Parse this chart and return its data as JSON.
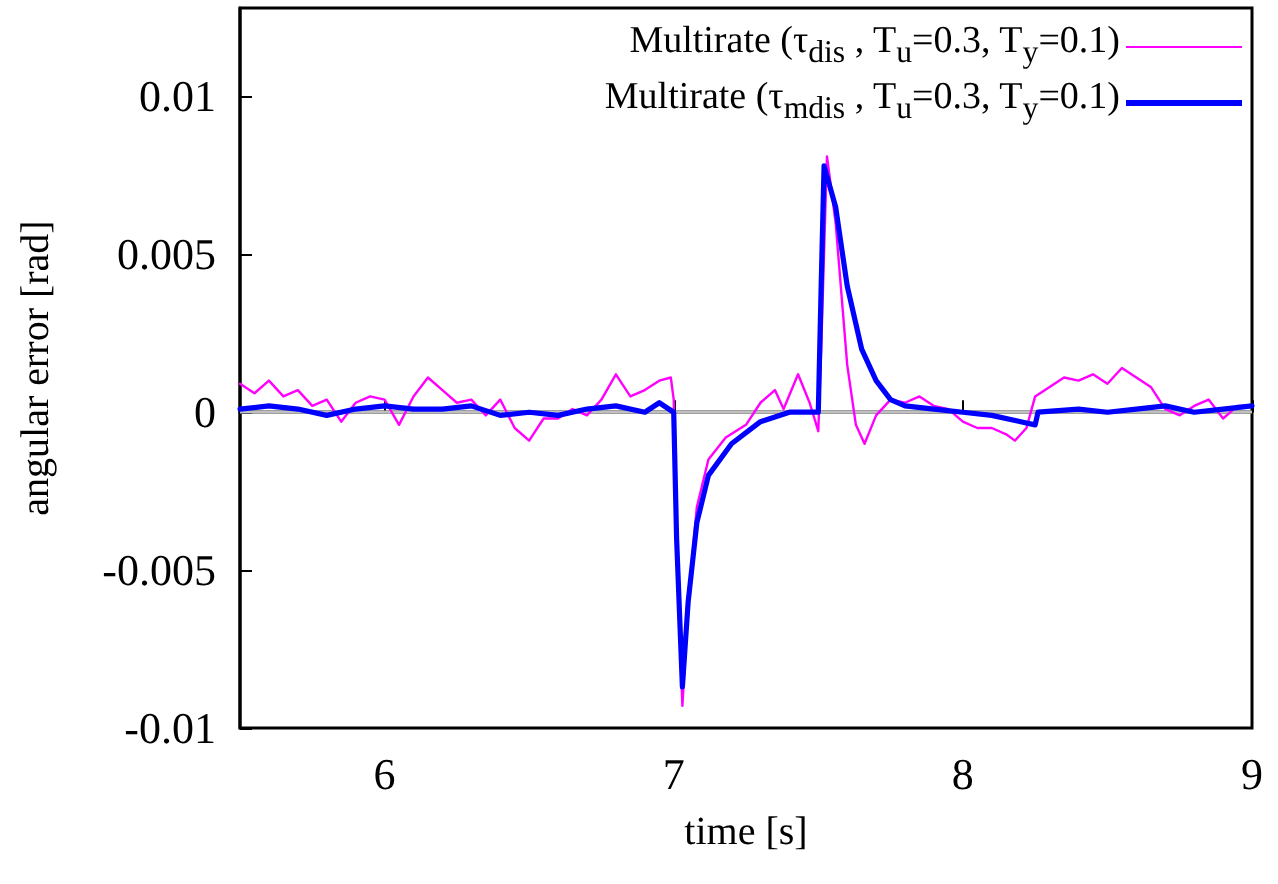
{
  "chart_data": {
    "type": "line",
    "xlabel": "time [s]",
    "ylabel": "angular error [rad]",
    "xlim": [
      5.5,
      9
    ],
    "ylim": [
      -0.01,
      0.0128
    ],
    "xticks": [
      6,
      7,
      8,
      9
    ],
    "yticks": [
      -0.01,
      -0.005,
      0,
      0.005,
      0.01
    ],
    "grid": false,
    "legend": "top right",
    "marker": "none",
    "line_style": "solid",
    "ref_lines": [
      {
        "axis": "y",
        "value": 0,
        "color": "#c0c0c0"
      }
    ],
    "series": [
      {
        "name": "Multirate (τ$_{dis}$ , T$_{u}$=0.3, T$_{y}$=0.1)",
        "color": "#ff00ff",
        "x": [
          5.5,
          5.55,
          5.6,
          5.65,
          5.7,
          5.75,
          5.8,
          5.85,
          5.9,
          5.95,
          6.0,
          6.05,
          6.1,
          6.15,
          6.2,
          6.25,
          6.3,
          6.35,
          6.4,
          6.45,
          6.5,
          6.55,
          6.6,
          6.65,
          6.7,
          6.75,
          6.8,
          6.85,
          6.9,
          6.95,
          6.99,
          7.0,
          7.01,
          7.03,
          7.05,
          7.08,
          7.12,
          7.18,
          7.25,
          7.3,
          7.35,
          7.38,
          7.43,
          7.47,
          7.5,
          7.51,
          7.53,
          7.56,
          7.6,
          7.63,
          7.66,
          7.7,
          7.75,
          7.8,
          7.85,
          7.9,
          7.95,
          8.0,
          8.05,
          8.1,
          8.15,
          8.18,
          8.22,
          8.25,
          8.3,
          8.35,
          8.4,
          8.45,
          8.5,
          8.55,
          8.6,
          8.65,
          8.7,
          8.75,
          8.8,
          8.85,
          8.9,
          8.95,
          9.0
        ],
        "values": [
          0.0009,
          0.0006,
          0.001,
          0.0005,
          0.0007,
          0.0002,
          0.0004,
          -0.0003,
          0.0003,
          0.0005,
          0.0004,
          -0.0004,
          0.0005,
          0.0011,
          0.0007,
          0.0003,
          0.0004,
          -0.0001,
          0.0004,
          -0.0005,
          -0.0009,
          -0.0002,
          -0.0002,
          0.0001,
          -0.0001,
          0.0004,
          0.0012,
          0.0005,
          0.0007,
          0.001,
          0.0011,
          0.0004,
          -0.004,
          -0.0093,
          -0.006,
          -0.003,
          -0.0015,
          -0.0008,
          -0.0004,
          0.0003,
          0.0007,
          0.0001,
          0.0012,
          0.0003,
          -0.0006,
          0.002,
          0.0081,
          0.006,
          0.0015,
          -0.0004,
          -0.001,
          -0.0001,
          0.0004,
          0.0003,
          0.0005,
          0.0002,
          0.0001,
          -0.0003,
          -0.0005,
          -0.0005,
          -0.0007,
          -0.0009,
          -0.0005,
          0.0005,
          0.0008,
          0.0011,
          0.001,
          0.0012,
          0.0009,
          0.0014,
          0.0011,
          0.0008,
          0.0001,
          -0.0001,
          0.0002,
          0.0004,
          -0.0002,
          0.0002,
          0.0002
        ]
      },
      {
        "name": "Multirate (τ$_{mdis}$ , T$_{u}$=0.3, T$_{y}$=0.1)",
        "color": "#0000ff",
        "x": [
          5.5,
          5.6,
          5.7,
          5.8,
          5.9,
          6.0,
          6.1,
          6.2,
          6.3,
          6.4,
          6.5,
          6.6,
          6.7,
          6.8,
          6.9,
          6.95,
          7.0,
          7.01,
          7.03,
          7.05,
          7.08,
          7.12,
          7.2,
          7.3,
          7.4,
          7.5,
          7.51,
          7.52,
          7.56,
          7.6,
          7.65,
          7.7,
          7.75,
          7.8,
          7.9,
          8.0,
          8.1,
          8.2,
          8.25,
          8.26,
          8.4,
          8.5,
          8.6,
          8.7,
          8.8,
          8.9,
          9.0
        ],
        "values": [
          0.0001,
          0.0002,
          0.0001,
          -0.0001,
          0.0001,
          0.0002,
          0.0001,
          0.0001,
          0.0002,
          -0.0001,
          0,
          -0.0001,
          0.0001,
          0.0002,
          0,
          0.0003,
          0,
          -0.004,
          -0.0087,
          -0.006,
          -0.0035,
          -0.002,
          -0.001,
          -0.0003,
          0,
          0,
          0.004,
          0.0078,
          0.0065,
          0.004,
          0.002,
          0.001,
          0.0004,
          0.0002,
          0.0001,
          0,
          -0.0001,
          -0.0003,
          -0.0004,
          0,
          0.0001,
          0,
          0.0001,
          0.0002,
          0,
          0.0001,
          0.0002
        ]
      }
    ]
  }
}
